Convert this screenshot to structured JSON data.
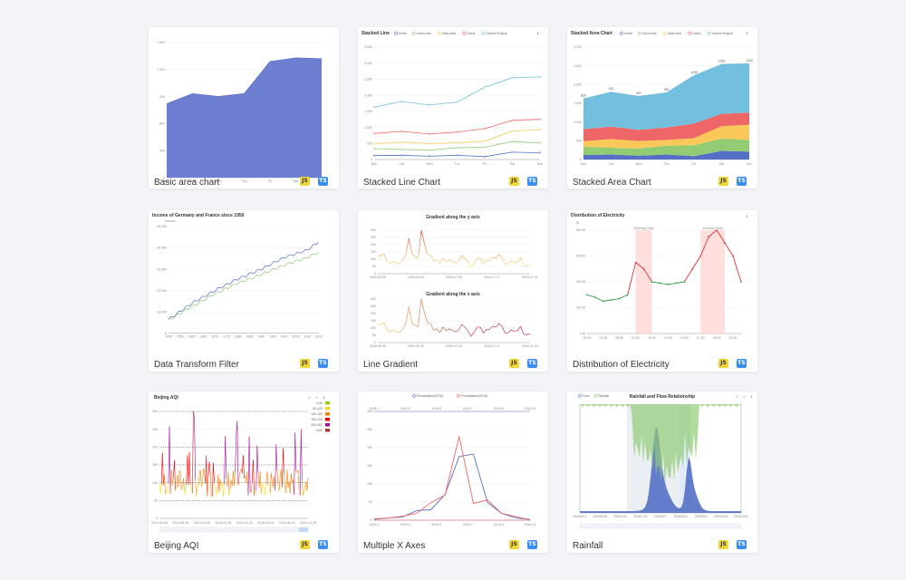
{
  "cards": [
    {
      "title": "Basic area chart",
      "js": "JS",
      "ts": "TS"
    },
    {
      "title": "Stacked Line Chart",
      "js": "JS",
      "ts": "TS"
    },
    {
      "title": "Stacked Area Chart",
      "js": "JS",
      "ts": "TS"
    },
    {
      "title": "Data Transform Filter",
      "js": "JS",
      "ts": "TS"
    },
    {
      "title": "Line Gradient",
      "js": "JS",
      "ts": "TS"
    },
    {
      "title": "Distribution of Electricity",
      "js": "JS",
      "ts": "TS"
    },
    {
      "title": "Beijing AQI",
      "js": "JS",
      "ts": "TS"
    },
    {
      "title": "Multiple X Axes",
      "js": "JS",
      "ts": "TS"
    },
    {
      "title": "Rainfall",
      "js": "JS",
      "ts": "TS"
    }
  ],
  "chart_data": [
    {
      "type": "area",
      "title": "",
      "categories": [
        "Mon",
        "Tue",
        "Wed",
        "Thu",
        "Fri",
        "Sat",
        "Sun"
      ],
      "values": [
        820,
        932,
        901,
        934,
        1290,
        1330,
        1320
      ],
      "ylim": [
        0,
        1500
      ],
      "yticks": [
        "0",
        "300",
        "600",
        "900",
        "1,200",
        "1,500"
      ],
      "color": "#6e7fd1"
    },
    {
      "type": "line",
      "title": "Stacked Line",
      "categories": [
        "Mon",
        "Tue",
        "Wed",
        "Thu",
        "Fri",
        "Sat",
        "Sun"
      ],
      "ylim": [
        0,
        3500
      ],
      "yticks": [
        "0",
        "500",
        "1,000",
        "1,500",
        "2,000",
        "2,500",
        "3,000",
        "3,500"
      ],
      "series": [
        {
          "name": "Email",
          "color": "#5470c6",
          "values": [
            120,
            132,
            101,
            134,
            90,
            230,
            210
          ]
        },
        {
          "name": "Union Ads",
          "color": "#91cc75",
          "values": [
            220,
            182,
            191,
            234,
            290,
            330,
            310
          ]
        },
        {
          "name": "Video Ads",
          "color": "#fac858",
          "values": [
            150,
            232,
            201,
            154,
            190,
            330,
            410
          ]
        },
        {
          "name": "Direct",
          "color": "#ee6666",
          "values": [
            320,
            332,
            301,
            334,
            390,
            330,
            320
          ]
        },
        {
          "name": "Search Engine",
          "color": "#73c0de",
          "values": [
            820,
            932,
            901,
            934,
            1290,
            1330,
            1320
          ]
        }
      ]
    },
    {
      "type": "area",
      "title": "Stacked Area Chart",
      "categories": [
        "Mon",
        "Tue",
        "Wed",
        "Thu",
        "Fri",
        "Sat",
        "Sun"
      ],
      "ylim": [
        0,
        3000
      ],
      "yticks": [
        "0",
        "500",
        "1,000",
        "1,500",
        "2,000",
        "2,500",
        "3,000"
      ],
      "top_labels": [
        "820",
        "932",
        "901",
        "934",
        "1290",
        "1330",
        "1320"
      ],
      "series": [
        {
          "name": "Email",
          "color": "#5470c6",
          "values": [
            120,
            132,
            101,
            134,
            90,
            230,
            210
          ]
        },
        {
          "name": "Union Ads",
          "color": "#91cc75",
          "values": [
            220,
            182,
            191,
            234,
            290,
            330,
            310
          ]
        },
        {
          "name": "Video Ads",
          "color": "#fac858",
          "values": [
            150,
            232,
            201,
            154,
            190,
            330,
            410
          ]
        },
        {
          "name": "Direct",
          "color": "#ee6666",
          "values": [
            320,
            332,
            301,
            334,
            390,
            330,
            320
          ]
        },
        {
          "name": "Search Engine",
          "color": "#73c0de",
          "values": [
            820,
            932,
            901,
            934,
            1290,
            1330,
            1320
          ]
        }
      ]
    },
    {
      "type": "line",
      "title": "Income of Germany and France since 1950",
      "ylabel": "Income",
      "x": [
        1950,
        1960,
        1970,
        1980,
        1990,
        2000,
        2010,
        2015
      ],
      "xticks": [
        "1950",
        "1955",
        "1960",
        "1965",
        "1970",
        "1975",
        "1980",
        "1985",
        "1990",
        "1995",
        "2000",
        "2005",
        "2010",
        "2015"
      ],
      "ylim": [
        0,
        50000
      ],
      "yticks": [
        "10,000",
        "20,000",
        "30,000",
        "40,000",
        "50,000"
      ],
      "series": [
        {
          "name": "Germany",
          "color": "#5470c6",
          "values": [
            6500,
            14000,
            20000,
            25500,
            30000,
            35500,
            39000,
            43000
          ]
        },
        {
          "name": "France",
          "color": "#91cc75",
          "values": [
            6000,
            12500,
            18500,
            23500,
            27500,
            32000,
            35500,
            38000
          ]
        }
      ]
    },
    {
      "type": "line",
      "title": "Gradient along the y axis",
      "title2": "Gradient along the x axis",
      "xticks": [
        "2000-06-05",
        "2000-06-19",
        "2000-07-03",
        "2000-07-17",
        "2000-07-31"
      ],
      "yticks": [
        "0",
        "50",
        "100",
        "150",
        "200",
        "250",
        "300"
      ],
      "ylim": [
        0,
        300
      ],
      "values": [
        116,
        129,
        135,
        86,
        73,
        85,
        73,
        68,
        92,
        130,
        245,
        139,
        115,
        111,
        309,
        206,
        137,
        128,
        85,
        94,
        71,
        106,
        84,
        93,
        85,
        73,
        83,
        125,
        107,
        82,
        44,
        72,
        106,
        107,
        66,
        91,
        92,
        113,
        107,
        131,
        111,
        64,
        69,
        88,
        77,
        83,
        111,
        57,
        55,
        60
      ]
    },
    {
      "type": "line",
      "title": "Distribution of Electricity",
      "ylabel": "W",
      "xticks": [
        "00:00",
        "01:15",
        "02:30",
        "03:45",
        "05:00",
        "06:15",
        "07:30",
        "08:45",
        "10:00",
        "11:15",
        "12:30",
        "13:45",
        "15:00",
        "16:15",
        "17:30",
        "18:45",
        "20:00",
        "21:15",
        "22:30",
        "23:45"
      ],
      "yticks": [
        "0 W",
        "200 W",
        "400 W",
        "600 W",
        "800 W"
      ],
      "ylim": [
        0,
        800
      ],
      "values": [
        300,
        280,
        250,
        260,
        270,
        300,
        550,
        500,
        400,
        390,
        380,
        390,
        400,
        500,
        600,
        750,
        800,
        700,
        600,
        400
      ],
      "bands": [
        {
          "label": "Morning Peak",
          "from": "07:30",
          "to": "10:00"
        },
        {
          "label": "Evening Peak",
          "from": "17:30",
          "to": "21:15"
        }
      ],
      "colors": {
        "low": "#2f9e44",
        "high": "#e03131",
        "band": "#ffd6d6"
      }
    },
    {
      "type": "bar",
      "title": "Beijing AQI",
      "xticks": [
        "2014-06-05",
        "2014-08-16",
        "2014-10-28",
        "2015-01-09",
        "2015-03-23",
        "2015-06-04",
        "2015-08-16",
        "2015-10-28"
      ],
      "yticks": [
        "0",
        "50",
        "100",
        "150",
        "200",
        "250",
        "300"
      ],
      "ylim": [
        0,
        300
      ],
      "legend": [
        "0-50",
        "50-100",
        "100-150",
        "150-200",
        "200-300",
        ">300"
      ],
      "colors": [
        "#93ce07",
        "#fbdb0f",
        "#fc7d02",
        "#fd0100",
        "#aa069f",
        "#ac3b2a"
      ],
      "marklines": [
        50,
        100,
        150,
        200,
        300
      ]
    },
    {
      "type": "line",
      "title": "",
      "legend": [
        "Precipitation(2015)",
        "Precipitation(2016)"
      ],
      "xticks_top": [
        "2016-1",
        "2016-3",
        "2016-5",
        "2016-7",
        "2016-9",
        "2016-11"
      ],
      "xticks_bottom": [
        "2015-1",
        "2015-3",
        "2015-5",
        "2015-7",
        "2015-9",
        "2015-11"
      ],
      "yticks": [
        "0",
        "50",
        "100",
        "150",
        "200",
        "250",
        "300"
      ],
      "ylim": [
        0,
        300
      ],
      "series": [
        {
          "name": "Precipitation(2015)",
          "color": "#5470c6",
          "values": [
            2.6,
            5.9,
            9.0,
            26.4,
            28.7,
            70.7,
            175.6,
            182.2,
            48.7,
            18.8,
            6.0,
            2.3
          ]
        },
        {
          "name": "Precipitation(2016)",
          "color": "#ee6666",
          "values": [
            3.9,
            5.9,
            11.1,
            18.7,
            48.3,
            69.2,
            231.6,
            46.6,
            55.4,
            18.4,
            10.3,
            0.7
          ]
        }
      ]
    },
    {
      "type": "area",
      "title": "Rainfall and Flow Relationship",
      "legend": [
        "Flow",
        "Rainfall"
      ],
      "colors": {
        "flow": "#5470c6",
        "rain": "#91cc75"
      },
      "xticks": [
        "2009/6/12",
        "2009/6/26",
        "2009/7/10",
        "2009/7/24",
        "2009/8/7",
        "2009/8/21",
        "2009/9/4",
        "2009/9/18",
        "2009/10/2"
      ]
    }
  ]
}
